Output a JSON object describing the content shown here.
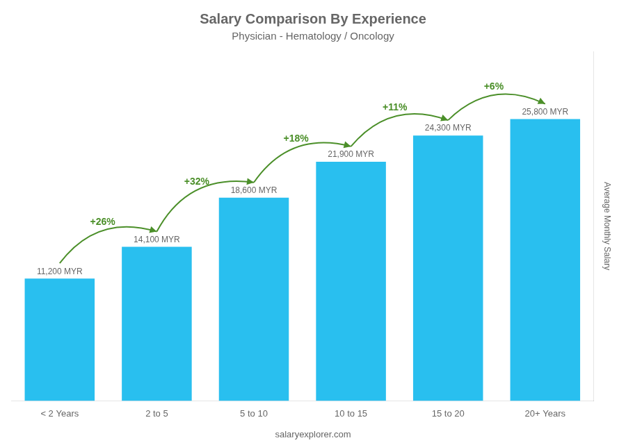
{
  "chart_data": {
    "type": "bar",
    "title": "Salary Comparison By Experience",
    "subtitle": "Physician - Hematology / Oncology",
    "categories": [
      "< 2 Years",
      "2 to 5",
      "5 to 10",
      "10 to 15",
      "15 to 20",
      "20+ Years"
    ],
    "values": [
      11200,
      14100,
      18600,
      21900,
      24300,
      25800
    ],
    "value_labels": [
      "11,200 MYR",
      "14,100 MYR",
      "18,600 MYR",
      "21,900 MYR",
      "24,300 MYR",
      "25,800 MYR"
    ],
    "color": "#29BFEF",
    "ylabel": "Average Monthly Salary",
    "ylim": [
      0,
      32000
    ],
    "annotations": [
      "+26%",
      "+32%",
      "+18%",
      "+11%",
      "+6%"
    ],
    "footer": "salaryexplorer.com",
    "grid": false,
    "tick_labels": "x"
  }
}
